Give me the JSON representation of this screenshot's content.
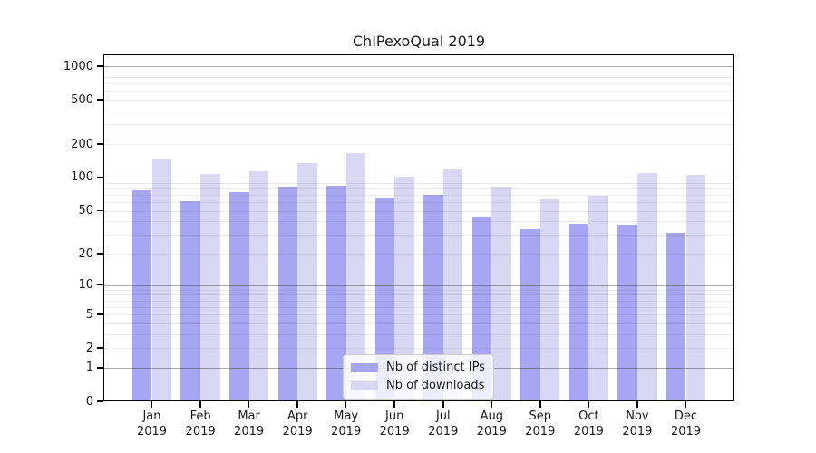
{
  "chart_data": {
    "type": "bar",
    "title": "ChIPexoQual 2019",
    "categories": [
      "Jan 2019",
      "Feb 2019",
      "Mar 2019",
      "Apr 2019",
      "May 2019",
      "Jun 2019",
      "Jul 2019",
      "Aug 2019",
      "Sep 2019",
      "Oct 2019",
      "Nov 2019",
      "Dec 2019"
    ],
    "series": [
      {
        "name": "Nb of distinct IPs",
        "color": "#a6a6f2",
        "values": [
          76,
          61,
          74,
          82,
          85,
          65,
          70,
          43,
          34,
          38,
          37,
          31
        ]
      },
      {
        "name": "Nb of downloads",
        "color": "#d8d8f5",
        "values": [
          145,
          107,
          113,
          136,
          165,
          102,
          118,
          83,
          63,
          68,
          109,
          105
        ]
      }
    ],
    "xlabel": "",
    "ylabel": "",
    "yscale": "log10(1+x)",
    "y_ticks": [
      0,
      1,
      2,
      5,
      10,
      20,
      50,
      100,
      200,
      500,
      1000
    ],
    "ylim": [
      0,
      1287
    ],
    "grid": {
      "major_ticks": [
        1,
        10,
        100,
        1000
      ],
      "minor_multiples": [
        2,
        3,
        4,
        5,
        6,
        7,
        8,
        9
      ]
    },
    "legend_position": "lower center",
    "colors": {
      "distinct_ips": "#a6a6f2",
      "downloads": "#d8d8f5",
      "major_grid": "#a9a9a9",
      "minor_grid": "#eaeaea",
      "axis": "#000000",
      "text": "#1a1a1a",
      "background": "#ffffff"
    }
  }
}
